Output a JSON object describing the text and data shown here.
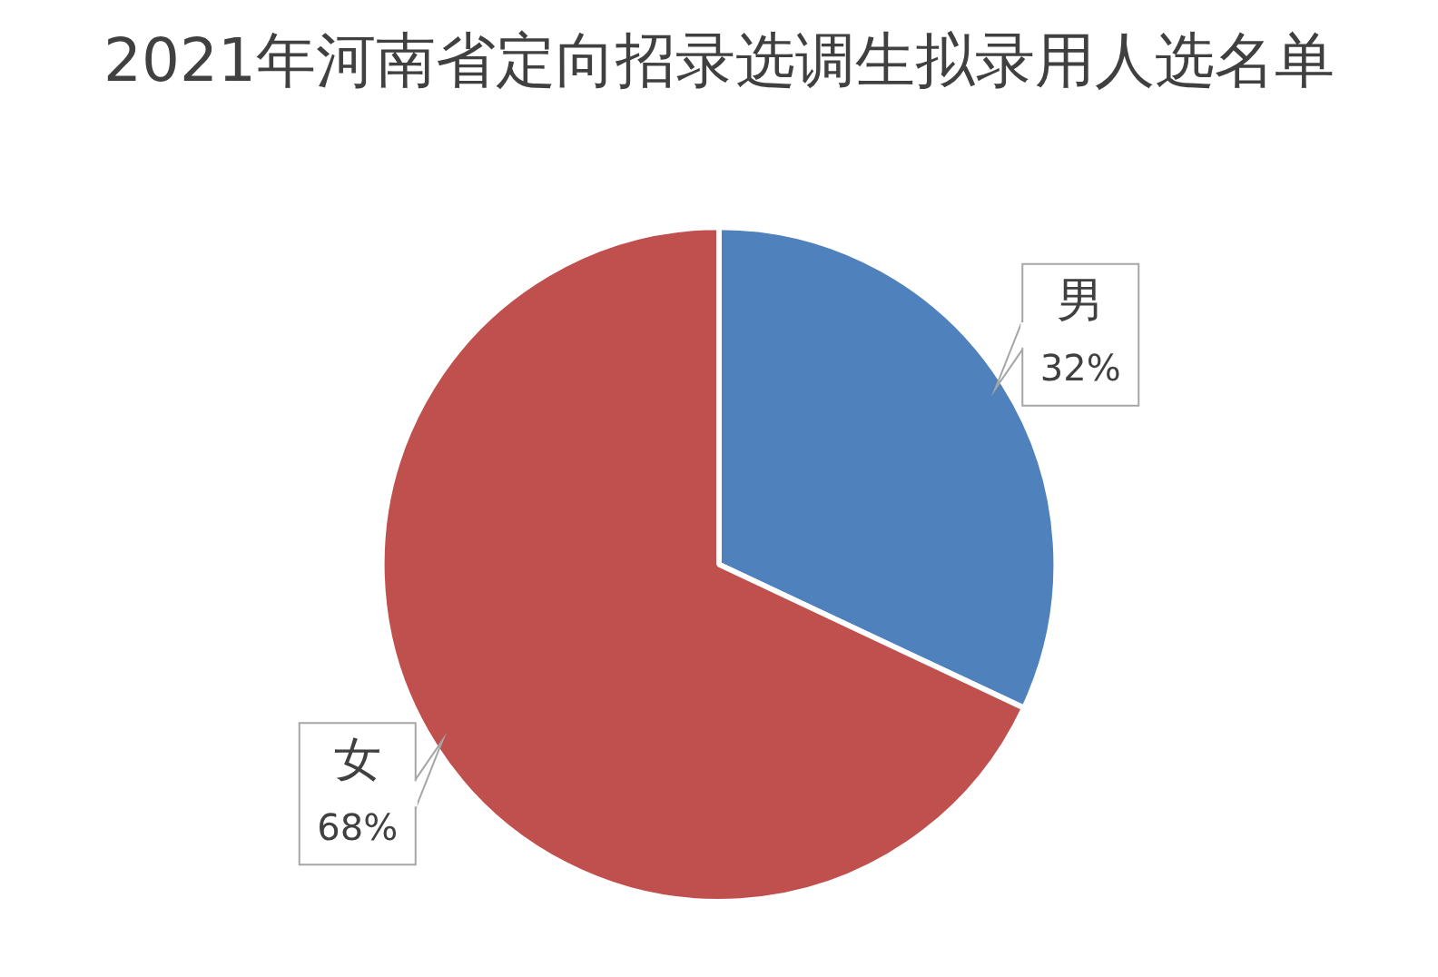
{
  "chart_data": {
    "type": "pie",
    "title": "2021年河南省定向招录选调生拟录用人选名单",
    "categories": [
      "男",
      "女"
    ],
    "values": [
      32,
      68
    ],
    "colors": [
      "#4f81bd",
      "#c0504d"
    ],
    "value_labels": [
      "32%",
      "68%"
    ],
    "legend": false
  }
}
